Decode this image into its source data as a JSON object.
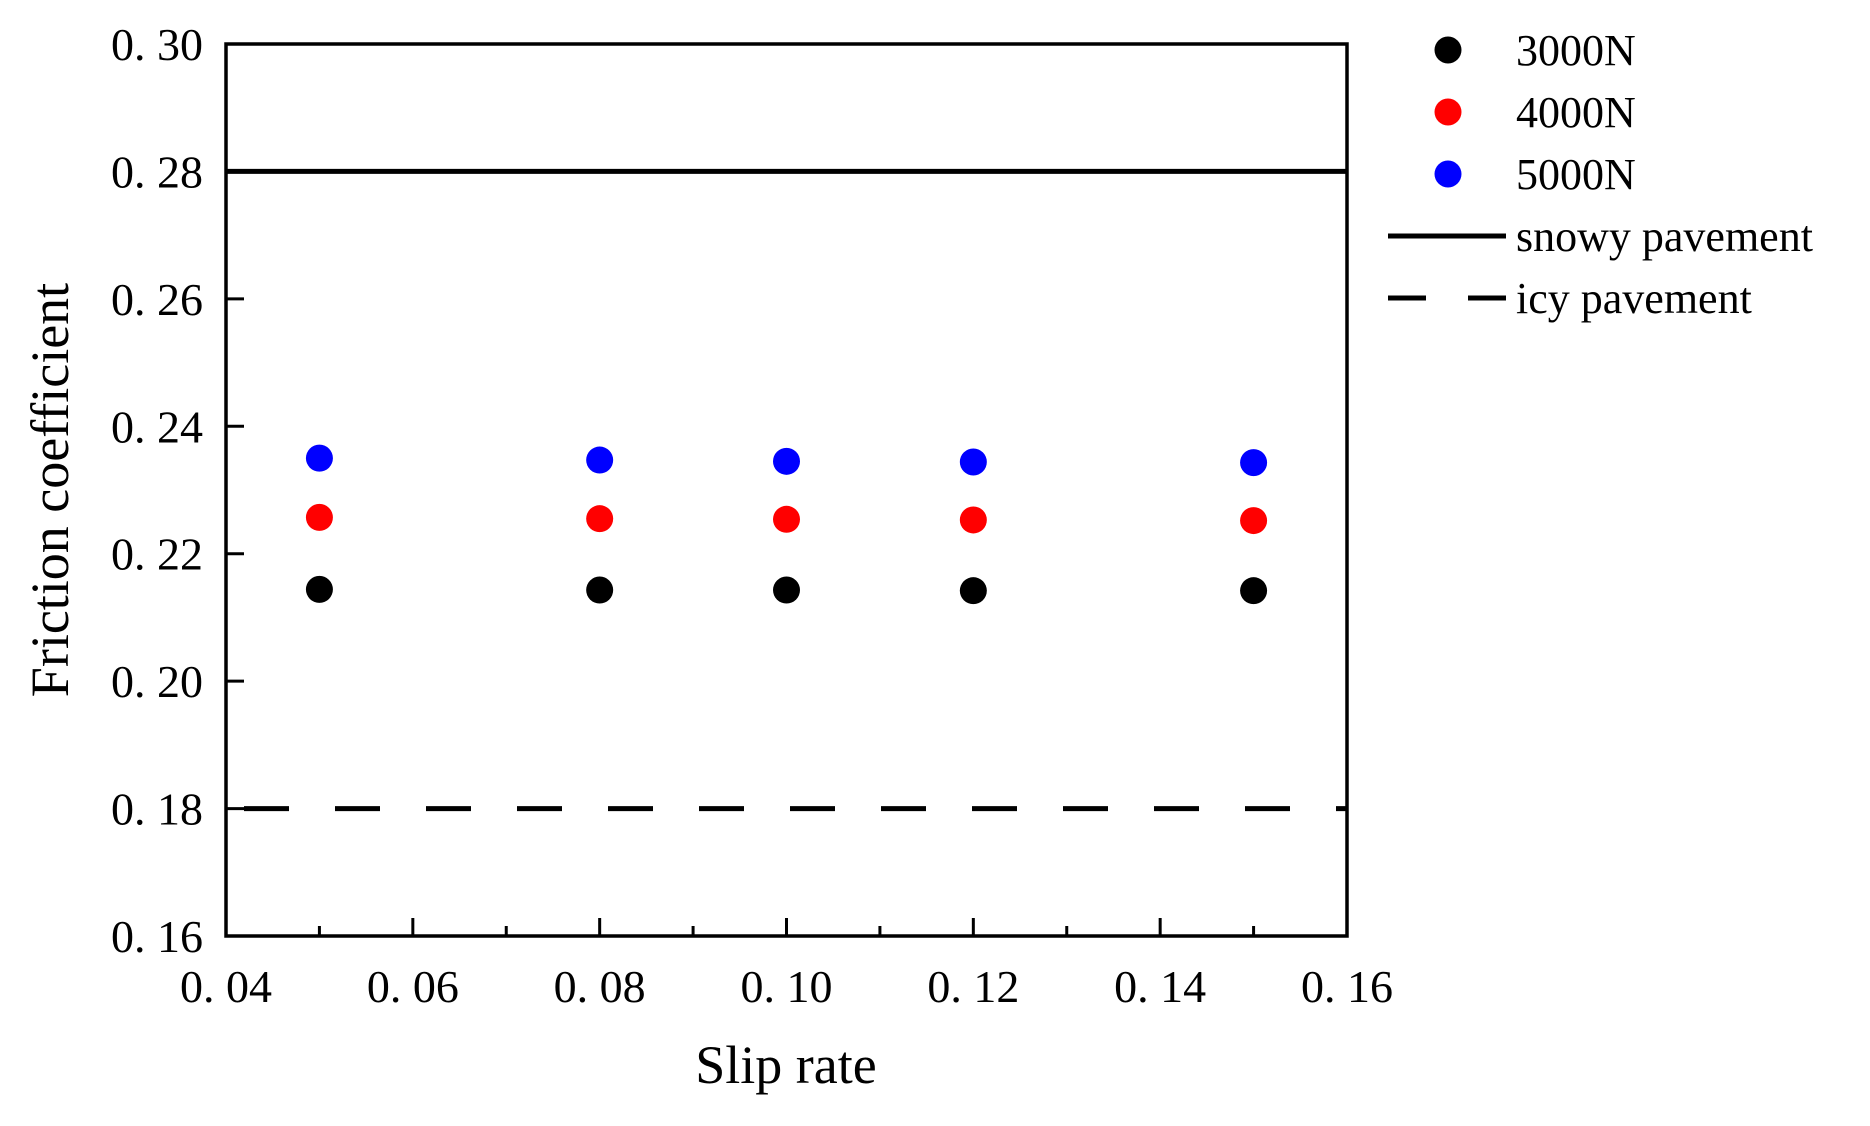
{
  "chart_data": {
    "type": "scatter",
    "xlabel": "Slip rate",
    "ylabel": "Friction coefficient",
    "xlim": [
      0.04,
      0.16
    ],
    "ylim": [
      0.16,
      0.3
    ],
    "xticks": [
      0.04,
      0.06,
      0.08,
      0.1,
      0.12,
      0.14,
      0.16
    ],
    "xtick_labels": [
      "0. 04",
      "0. 06",
      "0. 08",
      "0. 10",
      "0. 12",
      "0. 14",
      "0. 16"
    ],
    "yticks": [
      0.16,
      0.18,
      0.2,
      0.22,
      0.24,
      0.26,
      0.28,
      0.3
    ],
    "ytick_labels": [
      "0. 16",
      "0. 18",
      "0. 20",
      "0. 22",
      "0. 24",
      "0. 26",
      "0. 28",
      "0. 30"
    ],
    "series": [
      {
        "name": "3000N",
        "color": "#000000",
        "x": [
          0.05,
          0.08,
          0.1,
          0.12,
          0.15
        ],
        "y": [
          0.2144,
          0.2143,
          0.2143,
          0.2142,
          0.2142
        ]
      },
      {
        "name": "4000N",
        "color": "#ff0000",
        "x": [
          0.05,
          0.08,
          0.1,
          0.12,
          0.15
        ],
        "y": [
          0.2257,
          0.2255,
          0.2254,
          0.2253,
          0.2252
        ]
      },
      {
        "name": "5000N",
        "color": "#0000ff",
        "x": [
          0.05,
          0.08,
          0.1,
          0.12,
          0.15
        ],
        "y": [
          0.235,
          0.2347,
          0.2345,
          0.2344,
          0.2343
        ]
      }
    ],
    "reference_lines": [
      {
        "name": "snowy pavement",
        "y": 0.28,
        "style": "solid",
        "color": "#000000"
      },
      {
        "name": "icy pavement",
        "y": 0.18,
        "style": "dashed",
        "color": "#000000"
      }
    ],
    "legend_position": "outside-right-top",
    "grid": false
  }
}
